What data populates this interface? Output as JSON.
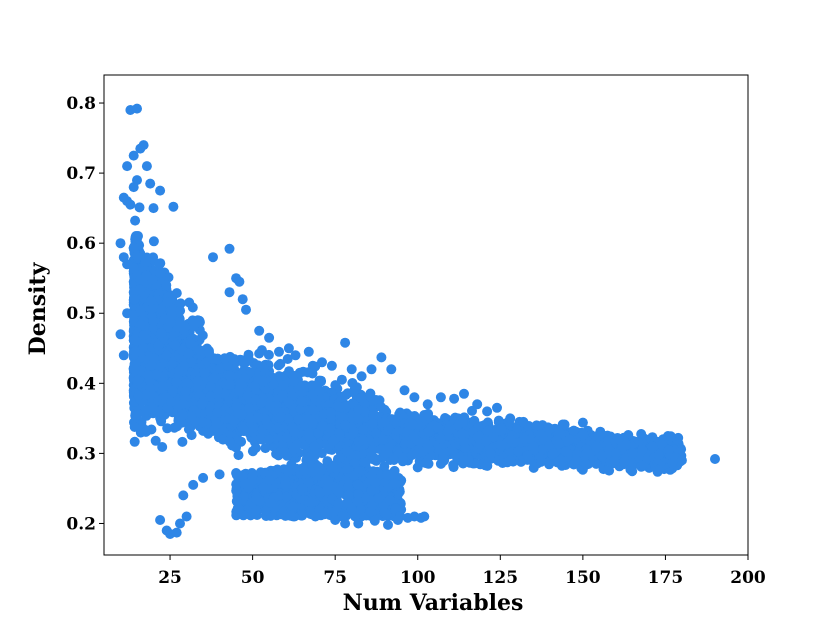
{
  "chart_data": {
    "type": "scatter",
    "xlabel": "Num Variables",
    "ylabel": "Density",
    "xlim": [
      5,
      200
    ],
    "ylim": [
      0.155,
      0.84
    ],
    "xticks": [
      25,
      50,
      75,
      100,
      125,
      150,
      175,
      200
    ],
    "yticks": [
      0.2,
      0.3,
      0.4,
      0.5,
      0.6,
      0.7,
      0.8
    ],
    "xtick_labels": [
      "25",
      "50",
      "75",
      "100",
      "125",
      "150",
      "175",
      "200"
    ],
    "ytick_labels": [
      "0.2",
      "0.3",
      "0.4",
      "0.5",
      "0.6",
      "0.7",
      "0.8"
    ],
    "grid": false,
    "marker_color": "#2e86e6",
    "points": [
      [
        13,
        0.79
      ],
      [
        15,
        0.792
      ],
      [
        17,
        0.74
      ],
      [
        16,
        0.735
      ],
      [
        14,
        0.725
      ],
      [
        12,
        0.71
      ],
      [
        18,
        0.71
      ],
      [
        11,
        0.665
      ],
      [
        12,
        0.66
      ],
      [
        13,
        0.655
      ],
      [
        14,
        0.68
      ],
      [
        15,
        0.69
      ],
      [
        19,
        0.685
      ],
      [
        22,
        0.675
      ],
      [
        20,
        0.65
      ],
      [
        26,
        0.652
      ],
      [
        10,
        0.6
      ],
      [
        11,
        0.58
      ],
      [
        12,
        0.57
      ],
      [
        10,
        0.47
      ],
      [
        11,
        0.44
      ],
      [
        12,
        0.5
      ],
      [
        38,
        0.58
      ],
      [
        43,
        0.592
      ],
      [
        45,
        0.55
      ],
      [
        46,
        0.545
      ],
      [
        47,
        0.52
      ],
      [
        43,
        0.53
      ],
      [
        48,
        0.505
      ],
      [
        52,
        0.475
      ],
      [
        55,
        0.465
      ],
      [
        58,
        0.445
      ],
      [
        61,
        0.45
      ],
      [
        63,
        0.44
      ],
      [
        67,
        0.445
      ],
      [
        71,
        0.43
      ],
      [
        74,
        0.425
      ],
      [
        78,
        0.458
      ],
      [
        80,
        0.42
      ],
      [
        83,
        0.41
      ],
      [
        86,
        0.42
      ],
      [
        89,
        0.437
      ],
      [
        92,
        0.42
      ],
      [
        96,
        0.39
      ],
      [
        99,
        0.38
      ],
      [
        103,
        0.37
      ],
      [
        107,
        0.38
      ],
      [
        111,
        0.378
      ],
      [
        114,
        0.385
      ],
      [
        118,
        0.37
      ],
      [
        121,
        0.36
      ],
      [
        124,
        0.365
      ],
      [
        128,
        0.35
      ],
      [
        132,
        0.345
      ],
      [
        136,
        0.34
      ],
      [
        140,
        0.335
      ],
      [
        143,
        0.33
      ],
      [
        146,
        0.32
      ],
      [
        150,
        0.344
      ],
      [
        151,
        0.3
      ],
      [
        154,
        0.31
      ],
      [
        158,
        0.305
      ],
      [
        162,
        0.31
      ],
      [
        165,
        0.3
      ],
      [
        168,
        0.305
      ],
      [
        171,
        0.31
      ],
      [
        173,
        0.298
      ],
      [
        176,
        0.3
      ],
      [
        178,
        0.295
      ],
      [
        180,
        0.29
      ],
      [
        176,
        0.305
      ],
      [
        160,
        0.3
      ],
      [
        148,
        0.29
      ],
      [
        141,
        0.3
      ],
      [
        135,
        0.31
      ],
      [
        128,
        0.32
      ],
      [
        122,
        0.3
      ],
      [
        114,
        0.29
      ],
      [
        107,
        0.285
      ],
      [
        100,
        0.28
      ],
      [
        93,
        0.275
      ],
      [
        86,
        0.268
      ],
      [
        82,
        0.255
      ],
      [
        79,
        0.24
      ],
      [
        76,
        0.228
      ],
      [
        72,
        0.215
      ],
      [
        69,
        0.21
      ],
      [
        75,
        0.205
      ],
      [
        78,
        0.2
      ],
      [
        82,
        0.2
      ],
      [
        87,
        0.204
      ],
      [
        91,
        0.198
      ],
      [
        94,
        0.205
      ],
      [
        97,
        0.208
      ],
      [
        99,
        0.21
      ],
      [
        101,
        0.208
      ],
      [
        102,
        0.21
      ],
      [
        22,
        0.205
      ],
      [
        24,
        0.19
      ],
      [
        25,
        0.185
      ],
      [
        27,
        0.187
      ],
      [
        28,
        0.2
      ],
      [
        30,
        0.21
      ],
      [
        29,
        0.24
      ],
      [
        32,
        0.255
      ],
      [
        35,
        0.265
      ],
      [
        40,
        0.27
      ],
      [
        45,
        0.272
      ],
      [
        50,
        0.268
      ],
      [
        55,
        0.262
      ],
      [
        60,
        0.255
      ],
      [
        65,
        0.25
      ],
      [
        70,
        0.245
      ],
      [
        190,
        0.292
      ]
    ]
  }
}
